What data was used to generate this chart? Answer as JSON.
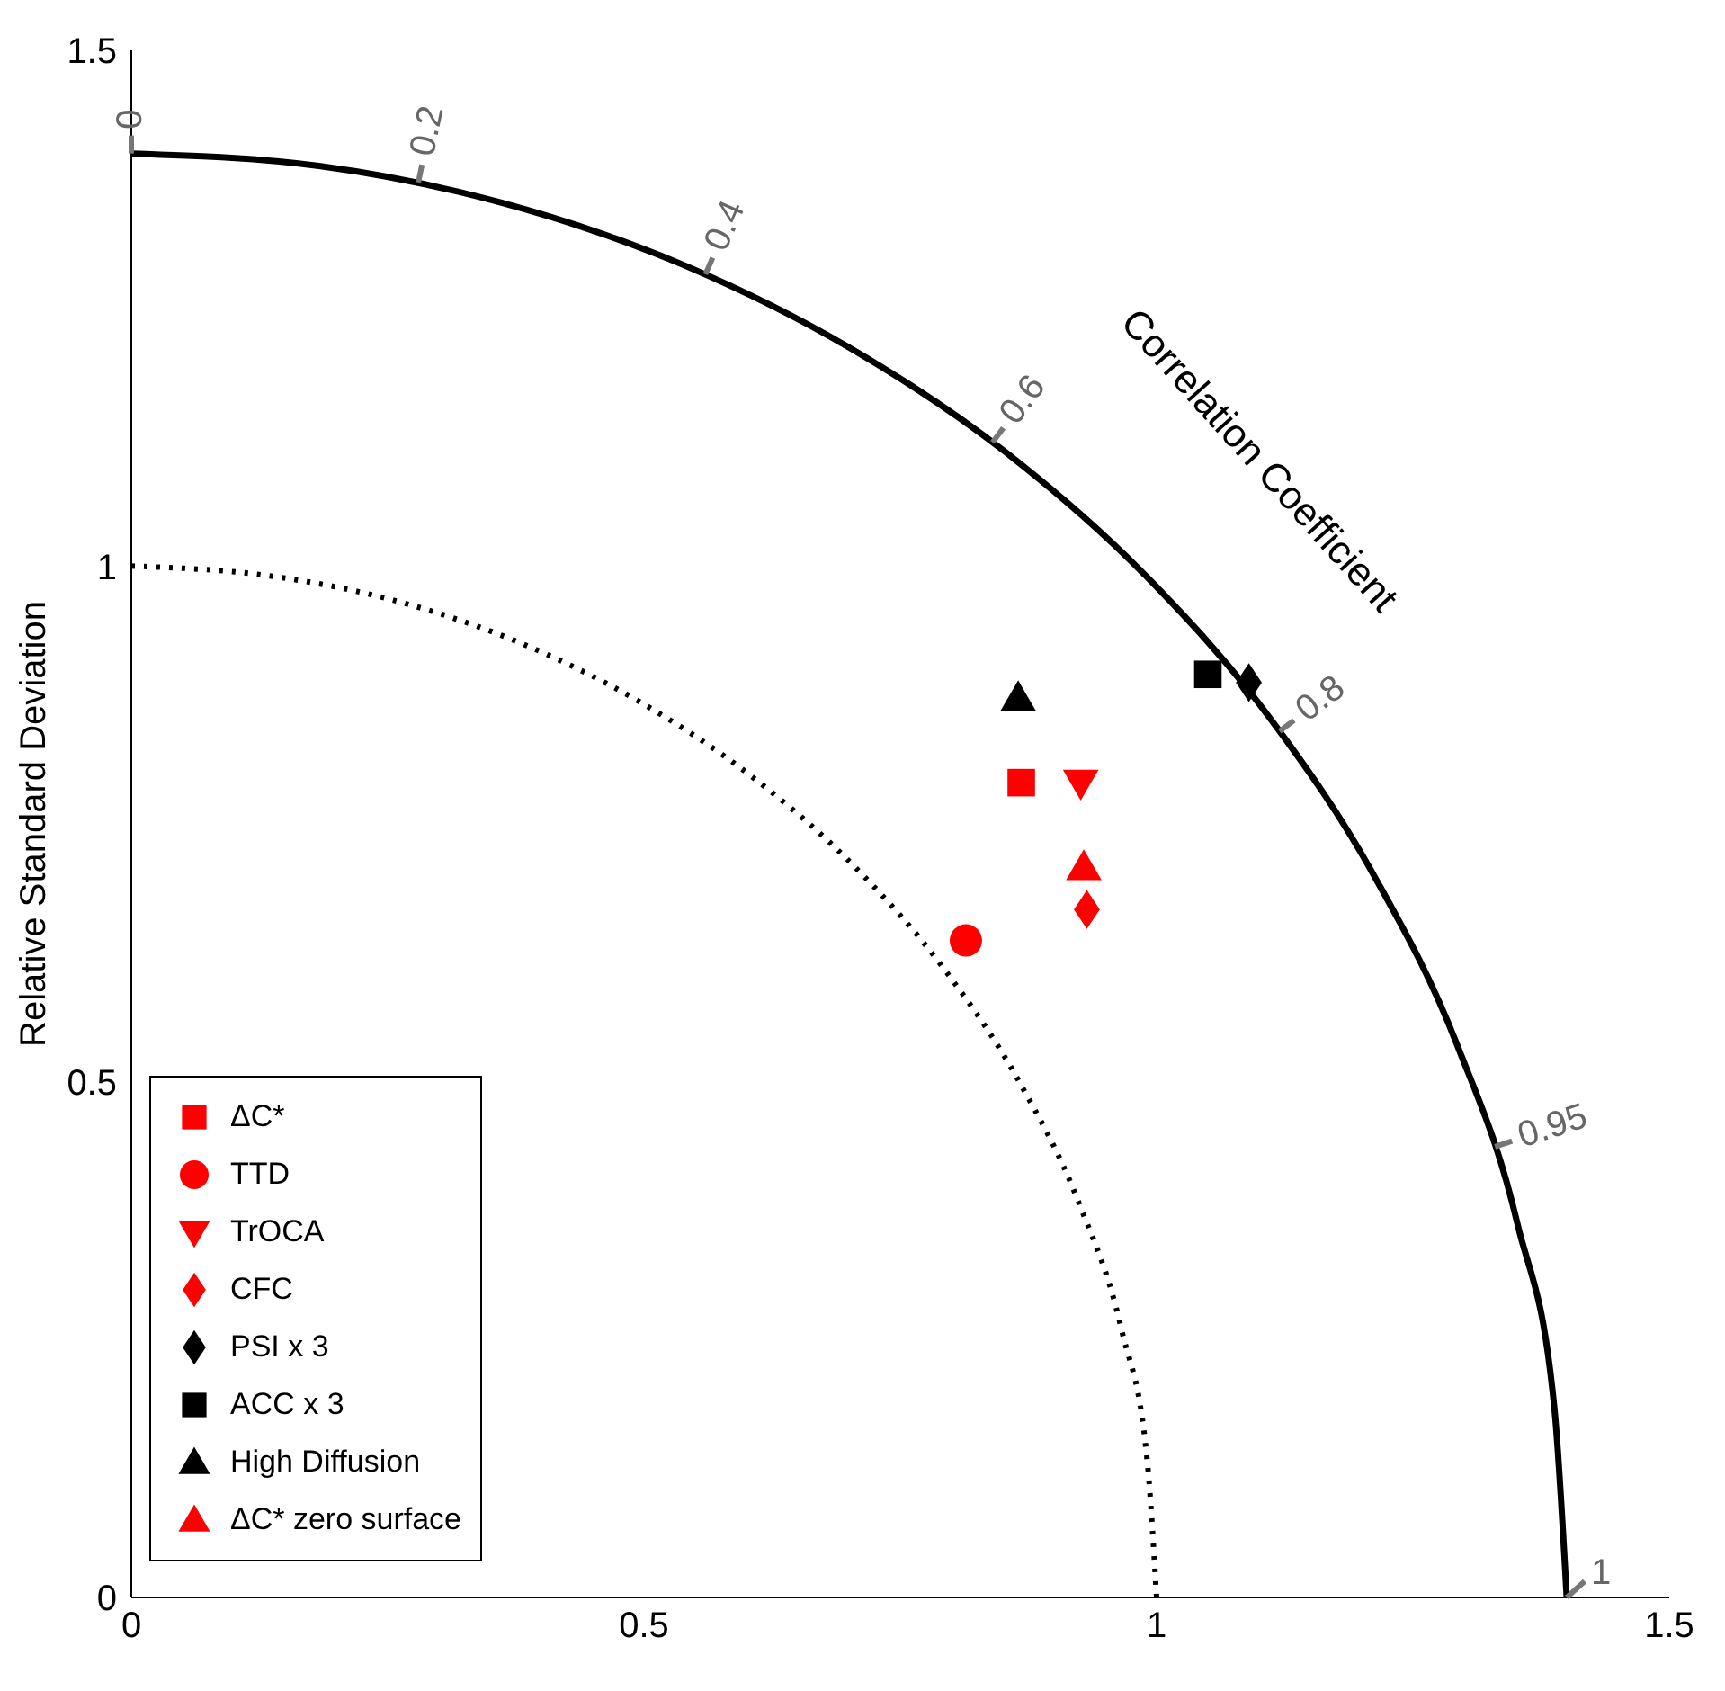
{
  "chart_data": {
    "type": "scatter",
    "ylabel": "Relative Standard Deviation",
    "xlim": [
      0,
      1.5
    ],
    "ylim": [
      0,
      1.5
    ],
    "xticks": [
      0,
      0.5,
      1,
      1.5
    ],
    "yticks": [
      0,
      0.5,
      1,
      1.5
    ],
    "grid": false,
    "legend": "bottom left",
    "annotations": [
      "Correlation Coefficient",
      {
        "text": "0",
        "x": 0,
        "y": 1.4
      },
      {
        "text": "0.2",
        "x": 0.28,
        "y": 1.372
      },
      {
        "text": "0.4",
        "x": 0.56,
        "y": 1.283
      },
      {
        "text": "0.6",
        "x": 0.84,
        "y": 1.12
      },
      {
        "text": "0.8",
        "x": 1.12,
        "y": 0.84
      },
      {
        "text": "0.95",
        "x": 1.33,
        "y": 0.437
      },
      {
        "text": "1",
        "x": 1.4,
        "y": 0
      }
    ],
    "series": [
      {
        "type": "line",
        "color": "#000000",
        "line_style": "solid",
        "x": [
          0,
          0.183,
          0.362,
          0.536,
          0.7,
          0.852,
          0.99,
          1.111,
          1.212,
          1.293,
          1.352,
          1.388,
          1.4
        ],
        "values": [
          1.4,
          1.388,
          1.352,
          1.293,
          1.212,
          1.111,
          0.99,
          0.852,
          0.7,
          0.536,
          0.362,
          0.183,
          0
        ]
      },
      {
        "type": "line",
        "color": "#000000",
        "line_style": "dotted",
        "x": [
          0,
          0.131,
          0.259,
          0.383,
          0.5,
          0.609,
          0.707,
          0.793,
          0.866,
          0.924,
          0.966,
          0.991,
          1
        ],
        "values": [
          1,
          0.991,
          0.966,
          0.924,
          0.866,
          0.793,
          0.707,
          0.609,
          0.5,
          0.383,
          0.259,
          0.131,
          0
        ]
      },
      {
        "name": "ΔC*",
        "marker": "square",
        "color": "#ff0000",
        "x": [
          0.868
        ],
        "values": [
          0.79
        ]
      },
      {
        "name": "TTD",
        "marker": "circle",
        "color": "#ff0000",
        "x": [
          0.814
        ],
        "values": [
          0.637
        ]
      },
      {
        "name": "TrOCA",
        "marker": "triangle-down",
        "color": "#ff0000",
        "x": [
          0.926
        ],
        "values": [
          0.79
        ]
      },
      {
        "name": "CFC",
        "marker": "diamond",
        "color": "#ff0000",
        "x": [
          0.932
        ],
        "values": [
          0.667
        ]
      },
      {
        "name": "PSI x 3",
        "marker": "diamond",
        "color": "#000000",
        "x": [
          1.09
        ],
        "values": [
          0.887
        ]
      },
      {
        "name": "ACC x 3",
        "marker": "square",
        "color": "#000000",
        "x": [
          1.05
        ],
        "values": [
          0.895
        ]
      },
      {
        "name": "High Diffusion",
        "marker": "triangle",
        "color": "#000000",
        "x": [
          0.865
        ],
        "values": [
          0.872
        ]
      },
      {
        "name": "ΔC* zero surface",
        "marker": "triangle",
        "color": "#ff0000",
        "x": [
          0.929
        ],
        "values": [
          0.708
        ]
      }
    ]
  }
}
